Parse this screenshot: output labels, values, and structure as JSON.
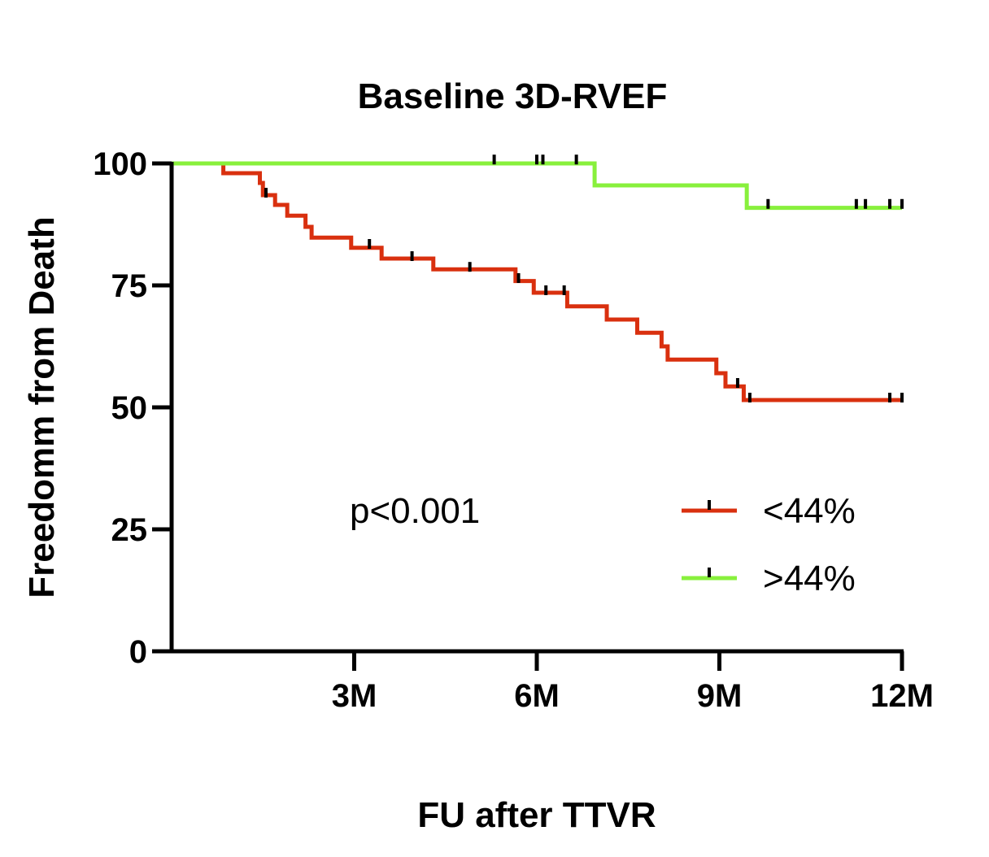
{
  "chart_data": {
    "type": "line",
    "subtype": "kaplan-meier",
    "title": "Baseline 3D-RVEF",
    "xlabel": "FU after TTVR",
    "ylabel": "Freedomm from Death",
    "xlim": [
      0,
      12
    ],
    "ylim": [
      0,
      100
    ],
    "x_ticks": [
      {
        "value": 3,
        "label": "3M"
      },
      {
        "value": 6,
        "label": "6M"
      },
      {
        "value": 9,
        "label": "9M"
      },
      {
        "value": 12,
        "label": "12M"
      }
    ],
    "y_ticks": [
      {
        "value": 0,
        "label": "0"
      },
      {
        "value": 25,
        "label": "25"
      },
      {
        "value": 50,
        "label": "50"
      },
      {
        "value": 75,
        "label": "75"
      },
      {
        "value": 100,
        "label": "100"
      }
    ],
    "annotation": "p<0.001",
    "legend_position": "lower-right",
    "series": [
      {
        "name": "<44%",
        "color": "#d9300f",
        "steps": [
          [
            0,
            100
          ],
          [
            0.85,
            98
          ],
          [
            1.45,
            96
          ],
          [
            1.5,
            93.5
          ],
          [
            1.7,
            91.5
          ],
          [
            1.9,
            89.3
          ],
          [
            2.2,
            87
          ],
          [
            2.3,
            84.8
          ],
          [
            2.95,
            82.7
          ],
          [
            3.45,
            80.5
          ],
          [
            4.3,
            78.3
          ],
          [
            5.65,
            75.9
          ],
          [
            5.95,
            73.5
          ],
          [
            6.5,
            70.7
          ],
          [
            7.15,
            68
          ],
          [
            7.65,
            65.3
          ],
          [
            8.05,
            62.5
          ],
          [
            8.15,
            59.8
          ],
          [
            8.95,
            57
          ],
          [
            9.1,
            54.3
          ],
          [
            9.4,
            51.5
          ],
          [
            12,
            51.5
          ]
        ],
        "censored": [
          [
            1.55,
            94
          ],
          [
            3.25,
            83.5
          ],
          [
            3.95,
            81
          ],
          [
            4.9,
            78.8
          ],
          [
            5.7,
            76.5
          ],
          [
            6.15,
            74
          ],
          [
            6.45,
            74
          ],
          [
            9.3,
            55
          ],
          [
            9.5,
            52
          ],
          [
            11.8,
            52
          ],
          [
            12,
            52
          ]
        ]
      },
      {
        "name": ">44%",
        "color": "#88f03c",
        "steps": [
          [
            0,
            100
          ],
          [
            6.95,
            95.5
          ],
          [
            9.45,
            90.9
          ],
          [
            12,
            90.9
          ]
        ],
        "censored": [
          [
            5.3,
            100.8
          ],
          [
            6.0,
            100.8
          ],
          [
            6.1,
            100.8
          ],
          [
            6.65,
            100.8
          ],
          [
            9.8,
            91.7
          ],
          [
            11.25,
            91.7
          ],
          [
            11.4,
            91.7
          ],
          [
            11.8,
            91.7
          ],
          [
            12,
            91.7
          ]
        ]
      }
    ]
  }
}
